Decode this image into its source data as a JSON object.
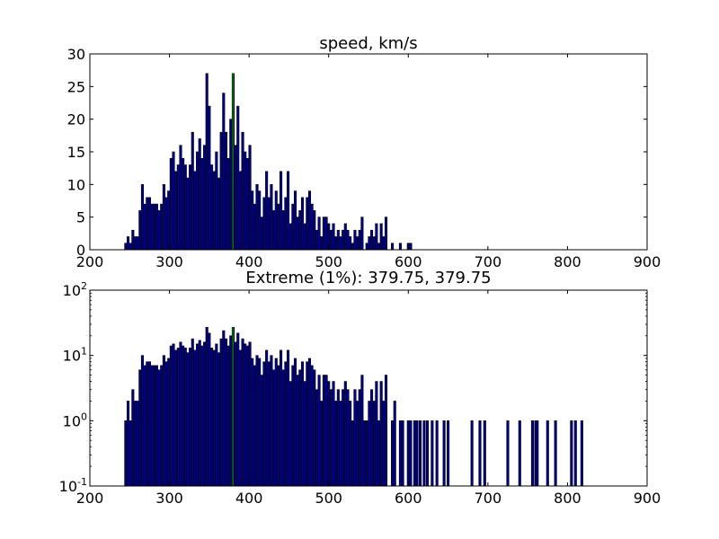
{
  "figure": {
    "background": "#ffffff",
    "bar_color": "#00008b",
    "bar_edge_color": "#000000",
    "marker_color": "#008000"
  },
  "chart_data": [
    {
      "type": "bar",
      "title": "speed, km/s",
      "xlabel": "",
      "ylabel": "",
      "xlim": [
        200,
        900
      ],
      "ylim": [
        0,
        30
      ],
      "yscale": "linear",
      "grid": false,
      "x_ticks": [
        200,
        300,
        400,
        500,
        600,
        700,
        800,
        900
      ],
      "y_ticks": [
        0,
        5,
        10,
        15,
        20,
        25,
        30
      ],
      "y_tick_labels": [
        "0",
        "5",
        "10",
        "15",
        "20",
        "25",
        "30"
      ],
      "x_tick_labels": [
        "200",
        "300",
        "400",
        "500",
        "600",
        "700",
        "800",
        "900"
      ],
      "bin_width": 2.8,
      "marker_line": {
        "x": 379.75,
        "height": 27
      },
      "series": [
        {
          "x": [
            245,
            248,
            251,
            254,
            257,
            260,
            263,
            266,
            269,
            272,
            275,
            278,
            281,
            284,
            287,
            290,
            293,
            296,
            299,
            302,
            305,
            308,
            311,
            314,
            317,
            320,
            323,
            326,
            329,
            332,
            335,
            338,
            341,
            344,
            347,
            350,
            353,
            356,
            359,
            362,
            365,
            368,
            371,
            374,
            377,
            380,
            383,
            386,
            389,
            392,
            395,
            398,
            401,
            404,
            407,
            410,
            413,
            416,
            419,
            422,
            425,
            428,
            431,
            434,
            437,
            440,
            443,
            446,
            449,
            452,
            455,
            458,
            461,
            464,
            467,
            470,
            473,
            476,
            479,
            482,
            485,
            488,
            491,
            494,
            497,
            500,
            503,
            506,
            509,
            512,
            515,
            518,
            521,
            524,
            527,
            530,
            533,
            536,
            539,
            542,
            545,
            548,
            551,
            554,
            557,
            560,
            563,
            566,
            569,
            572,
            580,
            583,
            590,
            593,
            600,
            603,
            608,
            611,
            615,
            620,
            624,
            630,
            636,
            645,
            650,
            680,
            690,
            696,
            725,
            740,
            756,
            760,
            762,
            775,
            785,
            805,
            810,
            818
          ],
          "values": [
            1,
            2,
            1,
            3,
            2,
            2,
            6,
            10,
            7,
            8,
            8,
            7,
            7,
            7,
            6,
            7,
            10,
            8,
            9,
            14,
            15,
            12,
            13,
            16,
            14,
            13,
            11,
            13,
            18,
            12,
            15,
            17,
            14,
            16,
            27,
            22,
            13,
            12,
            15,
            11,
            18,
            24,
            18,
            14,
            20,
            27,
            16,
            22,
            12,
            18,
            15,
            14,
            16,
            9,
            7,
            10,
            9,
            5,
            8,
            12,
            8,
            10,
            6,
            9,
            7,
            12,
            6,
            8,
            12,
            4,
            7,
            9,
            5,
            6,
            8,
            4,
            8,
            9,
            7,
            6,
            3,
            5,
            2,
            5,
            5,
            4,
            3,
            4,
            2,
            3,
            2,
            3,
            4,
            3,
            2,
            1,
            3,
            2,
            3,
            5,
            0,
            1,
            2,
            3,
            2,
            4,
            1,
            4,
            2,
            5,
            1,
            0,
            1,
            0,
            1,
            1,
            0,
            0,
            0,
            0,
            0,
            0,
            0,
            0,
            0,
            0,
            0,
            0,
            0,
            0,
            0,
            0,
            0,
            0,
            0,
            0,
            0,
            0
          ]
        }
      ]
    },
    {
      "type": "bar",
      "title": "Extreme (1%): 379.75, 379.75",
      "xlabel": "",
      "ylabel": "",
      "xlim": [
        200,
        900
      ],
      "ylim": [
        0.1,
        100
      ],
      "yscale": "log",
      "grid": false,
      "x_ticks": [
        200,
        300,
        400,
        500,
        600,
        700,
        800,
        900
      ],
      "x_tick_labels": [
        "200",
        "300",
        "400",
        "500",
        "600",
        "700",
        "800",
        "900"
      ],
      "y_ticks": [
        0.1,
        1,
        10,
        100
      ],
      "y_tick_labels": [
        {
          "base": "10",
          "exp": "-1"
        },
        {
          "base": "10",
          "exp": "0"
        },
        {
          "base": "10",
          "exp": "1"
        },
        {
          "base": "10",
          "exp": "2"
        }
      ],
      "bin_width": 2.8,
      "marker_line": {
        "x": 379.75,
        "height": 27
      },
      "series": [
        {
          "x": [
            245,
            248,
            251,
            254,
            257,
            260,
            263,
            266,
            269,
            272,
            275,
            278,
            281,
            284,
            287,
            290,
            293,
            296,
            299,
            302,
            305,
            308,
            311,
            314,
            317,
            320,
            323,
            326,
            329,
            332,
            335,
            338,
            341,
            344,
            347,
            350,
            353,
            356,
            359,
            362,
            365,
            368,
            371,
            374,
            377,
            380,
            383,
            386,
            389,
            392,
            395,
            398,
            401,
            404,
            407,
            410,
            413,
            416,
            419,
            422,
            425,
            428,
            431,
            434,
            437,
            440,
            443,
            446,
            449,
            452,
            455,
            458,
            461,
            464,
            467,
            470,
            473,
            476,
            479,
            482,
            485,
            488,
            491,
            494,
            497,
            500,
            503,
            506,
            509,
            512,
            515,
            518,
            521,
            524,
            527,
            530,
            533,
            536,
            539,
            542,
            545,
            548,
            551,
            554,
            557,
            560,
            563,
            566,
            569,
            572,
            580,
            583,
            590,
            593,
            600,
            603,
            608,
            611,
            615,
            620,
            624,
            630,
            636,
            645,
            650,
            680,
            690,
            696,
            725,
            740,
            756,
            760,
            762,
            775,
            785,
            805,
            810,
            818
          ],
          "values": [
            1,
            2,
            1,
            3,
            2,
            2,
            6,
            10,
            7,
            8,
            8,
            7,
            7,
            7,
            6,
            7,
            10,
            8,
            9,
            14,
            15,
            12,
            13,
            16,
            14,
            13,
            11,
            13,
            18,
            12,
            15,
            17,
            14,
            16,
            27,
            22,
            13,
            12,
            15,
            11,
            18,
            24,
            18,
            14,
            20,
            27,
            16,
            22,
            12,
            18,
            15,
            14,
            16,
            9,
            7,
            10,
            9,
            5,
            8,
            12,
            8,
            10,
            6,
            9,
            7,
            12,
            6,
            8,
            12,
            4,
            7,
            9,
            5,
            6,
            8,
            4,
            8,
            9,
            7,
            6,
            3,
            5,
            2,
            5,
            5,
            4,
            3,
            4,
            2,
            3,
            2,
            3,
            4,
            3,
            2,
            1,
            3,
            2,
            3,
            5,
            1,
            1,
            2,
            3,
            2,
            4,
            1,
            4,
            2,
            5,
            1,
            2,
            1,
            1,
            1,
            1,
            1,
            1,
            1,
            1,
            1,
            1,
            1,
            1,
            1,
            1,
            1,
            1,
            1,
            1,
            1,
            1,
            1,
            1,
            1,
            1,
            1,
            1
          ]
        }
      ]
    }
  ]
}
